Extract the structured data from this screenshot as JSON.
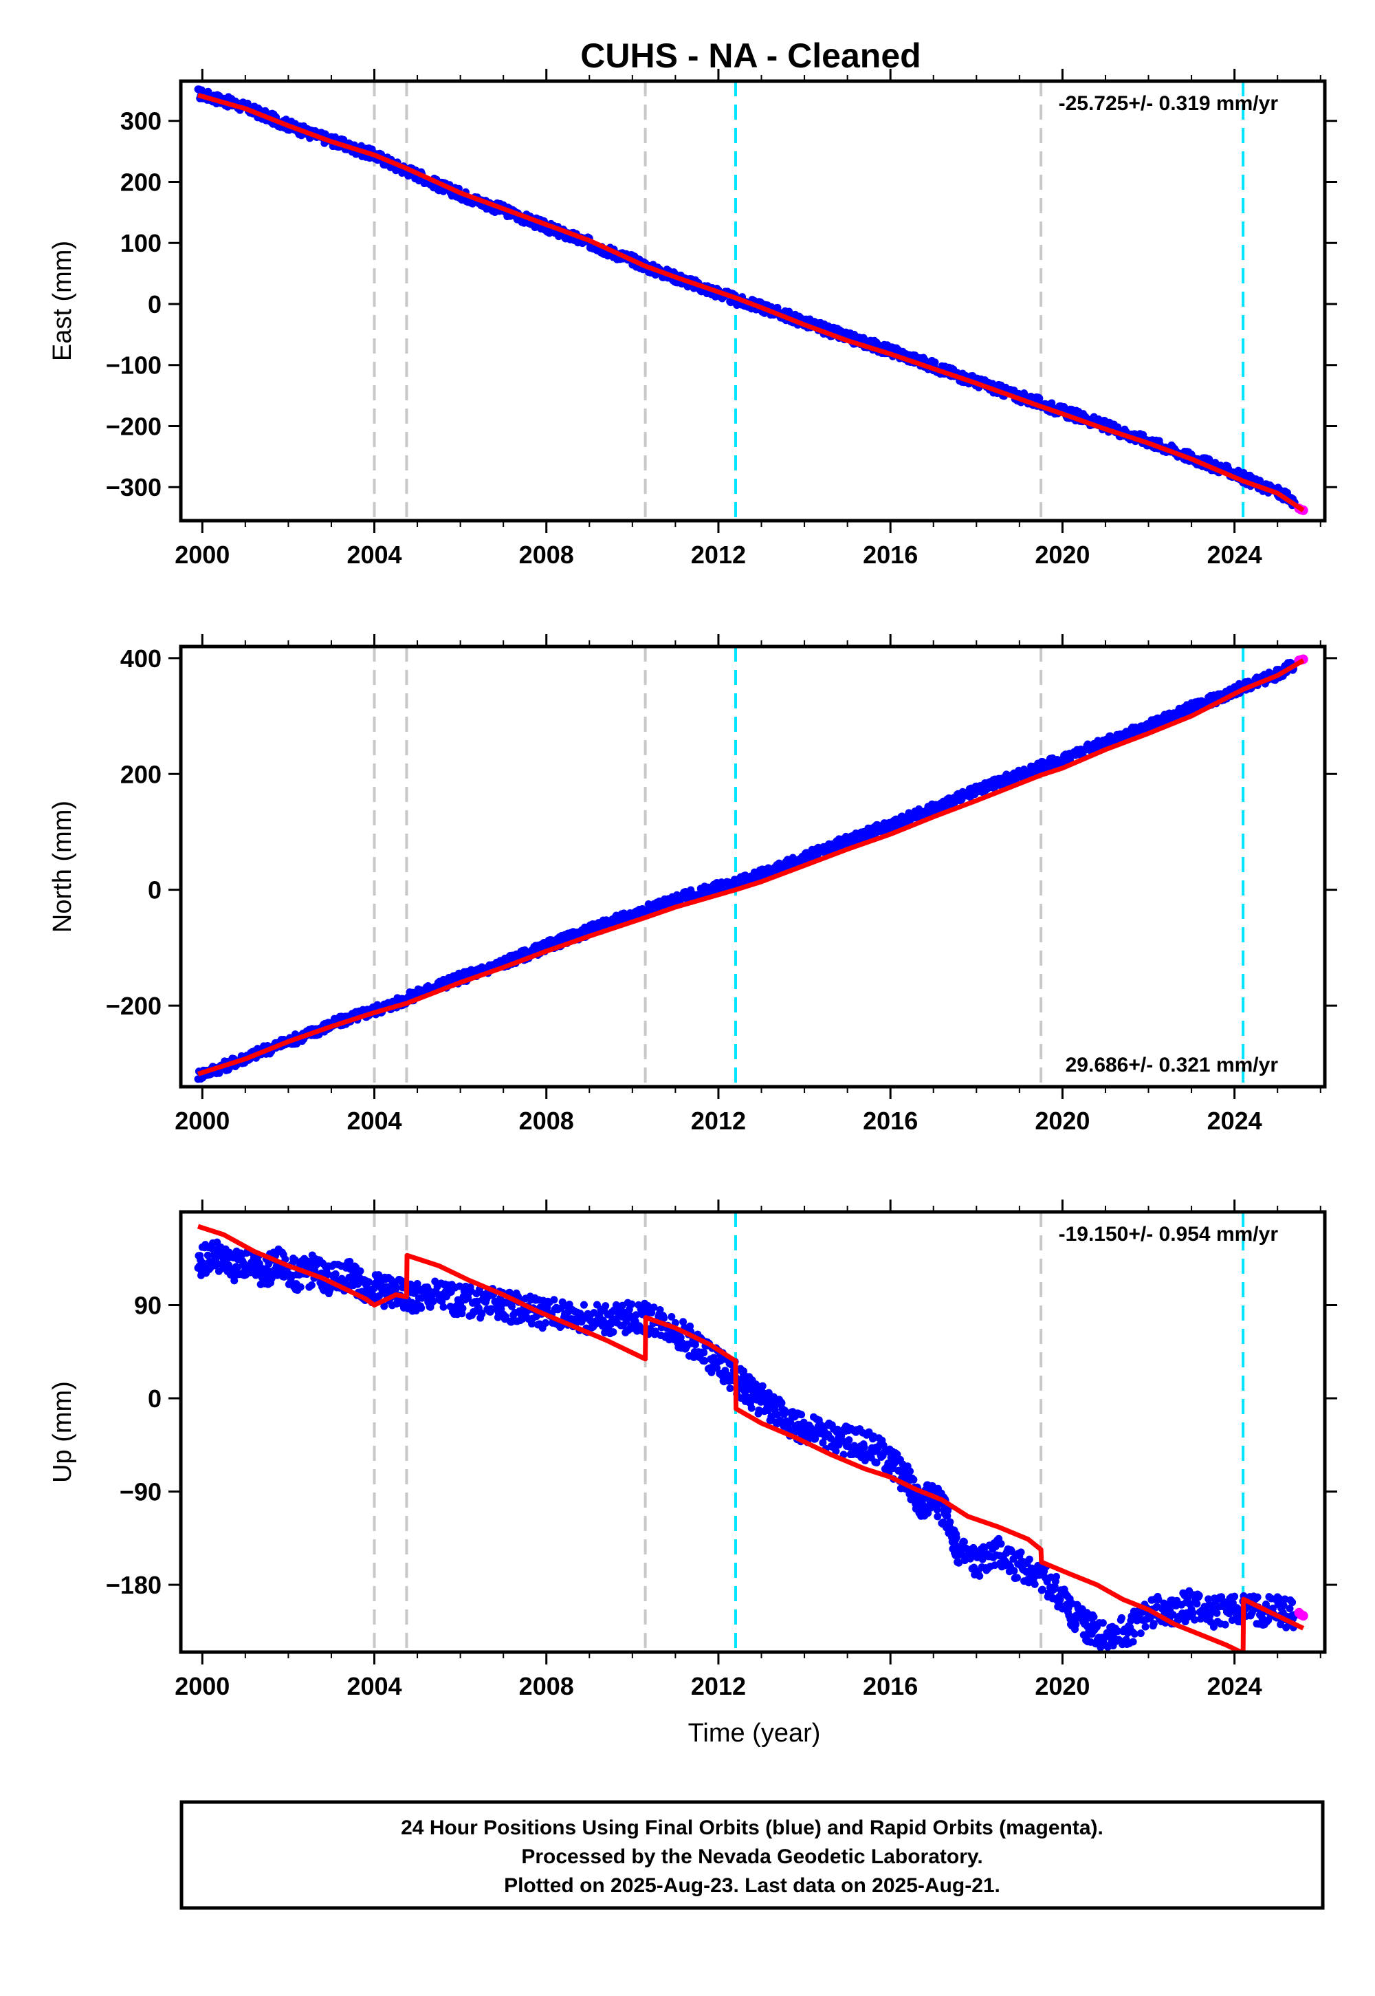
{
  "title": "CUHS  - NA - Cleaned",
  "colors": {
    "final_orbits": "#0000ff",
    "rapid_orbits": "#ff00ff",
    "model": "#ff0000",
    "event_gray": "#c8c8c8",
    "event_cyan": "#00e5ff",
    "frame": "#000000"
  },
  "footer": {
    "line1": "24 Hour Positions Using Final Orbits (blue) and Rapid Orbits (magenta).",
    "line2": "Processed by the Nevada Geodetic Laboratory.",
    "line3": "Plotted on 2025-Aug-23. Last data on 2025-Aug-21."
  },
  "chart_data": [
    {
      "type": "scatter",
      "component": "east",
      "ylabel": "East (mm)",
      "xlabel": "",
      "rate_text": "-25.725+/- 0.319 mm/yr",
      "rate_position": "top-right",
      "xlim": [
        1999.5,
        2026.1
      ],
      "ylim": [
        -355,
        365
      ],
      "xticks": [
        2000,
        2004,
        2008,
        2012,
        2016,
        2020,
        2024
      ],
      "xtick_labels": [
        "2000",
        "2004",
        "2008",
        "2012",
        "2016",
        "2020",
        "2024"
      ],
      "yticks": [
        300,
        200,
        100,
        0,
        -100,
        -200,
        -300
      ],
      "ytick_labels": [
        "300",
        "200",
        "100",
        "0",
        "−100",
        "−200",
        "−300"
      ],
      "event_lines_gray": [
        2004.0,
        2004.75,
        2010.3,
        2019.5
      ],
      "event_lines_cyan": [
        2012.4,
        2024.2
      ],
      "series": [
        {
          "role": "final-orbits",
          "x": [
            1999.9,
            2000.5,
            2001.0,
            2001.5,
            2002.0,
            2002.5,
            2003.0,
            2003.5,
            2004.0,
            2004.5,
            2005.0,
            2005.5,
            2006.0,
            2006.5,
            2007.0,
            2007.5,
            2008.0,
            2008.5,
            2009.0,
            2009.5,
            2010.0,
            2010.5,
            2011.0,
            2011.5,
            2012.0,
            2012.5,
            2013.0,
            2013.5,
            2014.0,
            2014.5,
            2015.0,
            2015.5,
            2016.0,
            2016.5,
            2017.0,
            2017.5,
            2018.0,
            2018.5,
            2019.0,
            2019.5,
            2020.0,
            2020.5,
            2021.0,
            2021.5,
            2022.0,
            2022.5,
            2023.0,
            2023.5,
            2024.0,
            2024.5,
            2025.0,
            2025.4
          ],
          "y": [
            345,
            333,
            322,
            307,
            293,
            279,
            268,
            255,
            244,
            226,
            212,
            194,
            180,
            166,
            154,
            140,
            126,
            112,
            100,
            85,
            72,
            56,
            44,
            30,
            18,
            4,
            -5,
            -17,
            -30,
            -42,
            -55,
            -65,
            -77,
            -89,
            -102,
            -115,
            -128,
            -140,
            -152,
            -163,
            -176,
            -187,
            -200,
            -213,
            -225,
            -238,
            -252,
            -265,
            -278,
            -294,
            -308,
            -325
          ]
        },
        {
          "role": "rapid-orbits",
          "x": [
            2025.5,
            2025.55,
            2025.6
          ],
          "y": [
            -335,
            -337,
            -338
          ]
        },
        {
          "role": "model",
          "x": [
            1999.9,
            2001.0,
            2002.0,
            2003.0,
            2004.0,
            2004.75,
            2006.0,
            2007.0,
            2008.0,
            2009.0,
            2010.3,
            2011.0,
            2012.4,
            2013.0,
            2014.0,
            2015.0,
            2016.0,
            2017.0,
            2018.0,
            2019.5,
            2020.0,
            2021.0,
            2022.0,
            2023.0,
            2024.2,
            2025.0,
            2025.6
          ],
          "y": [
            342,
            320,
            292,
            266,
            244,
            222,
            182,
            156,
            130,
            104,
            62,
            44,
            10,
            -6,
            -34,
            -60,
            -82,
            -106,
            -130,
            -168,
            -180,
            -205,
            -228,
            -254,
            -290,
            -310,
            -338
          ]
        }
      ]
    },
    {
      "type": "scatter",
      "component": "north",
      "ylabel": "North (mm)",
      "xlabel": "",
      "rate_text": "29.686+/- 0.321 mm/yr",
      "rate_position": "bottom-right",
      "xlim": [
        1999.5,
        2026.1
      ],
      "ylim": [
        -340,
        420
      ],
      "xticks": [
        2000,
        2004,
        2008,
        2012,
        2016,
        2020,
        2024
      ],
      "xtick_labels": [
        "2000",
        "2004",
        "2008",
        "2012",
        "2016",
        "2020",
        "2024"
      ],
      "yticks": [
        400,
        200,
        0,
        -200
      ],
      "ytick_labels": [
        "400",
        "200",
        "0",
        "−200"
      ],
      "event_lines_gray": [
        2004.0,
        2004.75,
        2010.3,
        2019.5
      ],
      "event_lines_cyan": [
        2012.4,
        2024.2
      ],
      "series": [
        {
          "role": "final-orbits",
          "x": [
            1999.9,
            2000.5,
            2001.0,
            2001.5,
            2002.0,
            2002.5,
            2003.0,
            2003.5,
            2004.0,
            2004.5,
            2005.0,
            2005.5,
            2006.0,
            2006.5,
            2007.0,
            2007.5,
            2008.0,
            2008.5,
            2009.0,
            2009.5,
            2010.0,
            2010.5,
            2011.0,
            2011.5,
            2012.0,
            2012.5,
            2013.0,
            2013.5,
            2014.0,
            2014.5,
            2015.0,
            2015.5,
            2016.0,
            2016.5,
            2017.0,
            2017.5,
            2018.0,
            2018.5,
            2019.0,
            2019.5,
            2020.0,
            2020.5,
            2021.0,
            2021.5,
            2022.0,
            2022.5,
            2023.0,
            2023.5,
            2024.0,
            2024.5,
            2025.0,
            2025.4
          ],
          "y": [
            -320,
            -305,
            -290,
            -276,
            -262,
            -248,
            -233,
            -220,
            -208,
            -196,
            -180,
            -165,
            -152,
            -140,
            -126,
            -112,
            -98,
            -84,
            -70,
            -56,
            -43,
            -30,
            -18,
            -6,
            4,
            14,
            26,
            40,
            55,
            70,
            85,
            98,
            112,
            126,
            140,
            155,
            170,
            185,
            198,
            212,
            226,
            240,
            255,
            268,
            282,
            298,
            314,
            328,
            344,
            358,
            372,
            390
          ]
        },
        {
          "role": "rapid-orbits",
          "x": [
            2025.5,
            2025.55,
            2025.6
          ],
          "y": [
            396,
            397,
            398
          ]
        },
        {
          "role": "model",
          "x": [
            1999.9,
            2001.0,
            2002.0,
            2003.0,
            2004.0,
            2004.75,
            2006.0,
            2007.0,
            2008.0,
            2009.0,
            2010.3,
            2011.0,
            2012.4,
            2013.0,
            2014.0,
            2015.0,
            2016.0,
            2017.0,
            2018.0,
            2019.5,
            2020.0,
            2021.0,
            2022.0,
            2023.0,
            2024.2,
            2025.0,
            2025.6
          ],
          "y": [
            -318,
            -292,
            -262,
            -236,
            -212,
            -196,
            -160,
            -134,
            -106,
            -80,
            -48,
            -30,
            0,
            14,
            42,
            70,
            96,
            126,
            154,
            198,
            210,
            242,
            270,
            300,
            346,
            370,
            396
          ]
        }
      ]
    },
    {
      "type": "scatter",
      "component": "up",
      "ylabel": "Up (mm)",
      "xlabel": "Time (year)",
      "rate_text": "-19.150+/- 0.954 mm/yr",
      "rate_position": "top-right",
      "xlim": [
        1999.5,
        2026.1
      ],
      "ylim": [
        -245,
        180
      ],
      "xticks": [
        2000,
        2004,
        2008,
        2012,
        2016,
        2020,
        2024
      ],
      "xtick_labels": [
        "2000",
        "2004",
        "2008",
        "2012",
        "2016",
        "2020",
        "2024"
      ],
      "yticks": [
        90,
        0,
        -90,
        -180
      ],
      "ytick_labels": [
        "90",
        "0",
        "−90",
        "−180"
      ],
      "event_lines_gray": [
        2004.0,
        2004.75,
        2010.3,
        2019.5
      ],
      "event_lines_cyan": [
        2012.4,
        2024.2
      ],
      "series": [
        {
          "role": "final-orbits",
          "x": [
            1999.9,
            2000.3,
            2000.7,
            2001.0,
            2001.4,
            2001.8,
            2002.2,
            2002.6,
            2003.0,
            2003.4,
            2003.8,
            2004.2,
            2004.6,
            2005.0,
            2005.5,
            2006.0,
            2006.5,
            2007.0,
            2007.5,
            2008.0,
            2008.5,
            2009.0,
            2009.5,
            2010.0,
            2010.5,
            2011.0,
            2011.5,
            2012.0,
            2012.4,
            2012.8,
            2013.2,
            2013.6,
            2014.0,
            2014.5,
            2015.0,
            2015.5,
            2016.0,
            2016.4,
            2016.7,
            2017.0,
            2017.3,
            2017.6,
            2018.0,
            2018.5,
            2019.0,
            2019.5,
            2020.0,
            2020.3,
            2020.6,
            2021.0,
            2021.5,
            2022.0,
            2022.5,
            2023.0,
            2023.5,
            2024.0,
            2024.5,
            2025.0,
            2025.4
          ],
          "y": [
            130,
            140,
            126,
            134,
            122,
            130,
            118,
            124,
            114,
            118,
            108,
            104,
            100,
            96,
            100,
            94,
            92,
            90,
            86,
            82,
            80,
            78,
            76,
            78,
            76,
            66,
            50,
            34,
            20,
            4,
            -8,
            -20,
            -30,
            -36,
            -42,
            -46,
            -60,
            -80,
            -100,
            -96,
            -112,
            -150,
            -160,
            -150,
            -162,
            -170,
            -192,
            -210,
            -222,
            -228,
            -226,
            -206,
            -204,
            -200,
            -208,
            -204,
            -206,
            -204,
            -210
          ]
        },
        {
          "role": "rapid-orbits",
          "x": [
            2025.5,
            2025.55,
            2025.6
          ],
          "y": [
            -207,
            -209,
            -210
          ]
        },
        {
          "role": "model",
          "x": [
            1999.9,
            2000.5,
            2001.2,
            2002.0,
            2002.8,
            2003.4,
            2003.8,
            2004.0,
            2004.5,
            2004.75,
            2004.76,
            2005.5,
            2006.2,
            2007.0,
            2007.8,
            2008.6,
            2009.4,
            2010.0,
            2010.3,
            2010.31,
            2011.0,
            2011.8,
            2012.4,
            2012.41,
            2013.0,
            2013.8,
            2014.6,
            2015.4,
            2016.0,
            2016.6,
            2017.2,
            2017.8,
            2018.5,
            2019.2,
            2019.5,
            2019.51,
            2020.2,
            2020.8,
            2021.4,
            2022.0,
            2022.6,
            2023.2,
            2023.8,
            2024.2,
            2024.21,
            2024.8,
            2025.6
          ],
          "y": [
            166,
            158,
            142,
            128,
            116,
            104,
            96,
            90,
            100,
            98,
            138,
            128,
            114,
            100,
            84,
            70,
            56,
            44,
            38,
            78,
            68,
            52,
            36,
            -10,
            -24,
            -38,
            -54,
            -68,
            -76,
            -88,
            -98,
            -114,
            -124,
            -136,
            -146,
            -158,
            -170,
            -180,
            -194,
            -204,
            -218,
            -228,
            -238,
            -246,
            -194,
            -206,
            -222
          ]
        }
      ]
    }
  ]
}
